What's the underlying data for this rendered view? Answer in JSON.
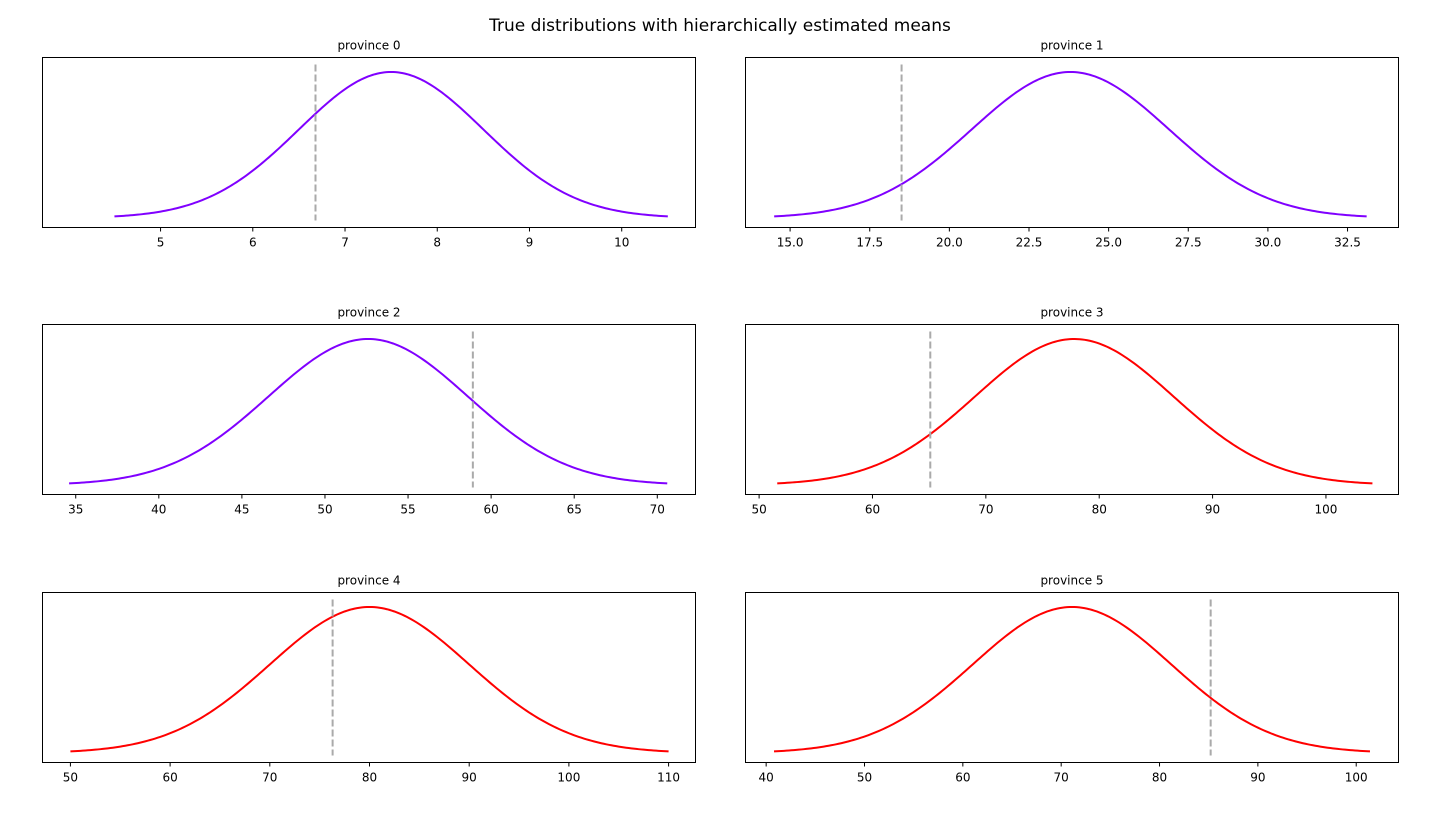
{
  "figure_title": "True distributions with hierarchically estimated means",
  "colors": {
    "purple": "#8000ff",
    "red": "#ff0000",
    "mean_line": "#aaaaaa"
  },
  "chart_data": [
    {
      "type": "line",
      "title": "province 0",
      "xlabel": "",
      "ylabel": "",
      "mean": 7.5,
      "sd": 1.0,
      "x_range": [
        4.5,
        10.5
      ],
      "xlim": [
        3.72,
        10.8
      ],
      "xticks": [
        5,
        6,
        7,
        8,
        9,
        10
      ],
      "xtick_labels": [
        "5",
        "6",
        "7",
        "8",
        "9",
        "10"
      ],
      "estimated_mean": 6.68,
      "color": "#8000ff",
      "yticks_visible": false
    },
    {
      "type": "line",
      "title": "province 1",
      "xlabel": "",
      "ylabel": "",
      "mean": 23.8,
      "sd": 3.1,
      "x_range": [
        14.5,
        33.1
      ],
      "xlim": [
        13.6,
        34.1
      ],
      "xticks": [
        15.0,
        17.5,
        20.0,
        22.5,
        25.0,
        27.5,
        30.0,
        32.5
      ],
      "xtick_labels": [
        "15.0",
        "17.5",
        "20.0",
        "22.5",
        "25.0",
        "27.5",
        "30.0",
        "32.5"
      ],
      "estimated_mean": 18.5,
      "color": "#8000ff",
      "yticks_visible": false
    },
    {
      "type": "line",
      "title": "province 2",
      "xlabel": "",
      "ylabel": "",
      "mean": 52.6,
      "sd": 6.0,
      "x_range": [
        34.6,
        70.6
      ],
      "xlim": [
        33.0,
        72.3
      ],
      "xticks": [
        35,
        40,
        45,
        50,
        55,
        60,
        65,
        70
      ],
      "xtick_labels": [
        "35",
        "40",
        "45",
        "50",
        "55",
        "60",
        "65",
        "70"
      ],
      "estimated_mean": 58.9,
      "color": "#8000ff",
      "yticks_visible": false
    },
    {
      "type": "line",
      "title": "province 3",
      "xlabel": "",
      "ylabel": "",
      "mean": 77.8,
      "sd": 8.75,
      "x_range": [
        51.6,
        104.1
      ],
      "xlim": [
        48.8,
        106.4
      ],
      "xticks": [
        50,
        60,
        70,
        80,
        90,
        100
      ],
      "xtick_labels": [
        "50",
        "60",
        "70",
        "80",
        "90",
        "100"
      ],
      "estimated_mean": 65.1,
      "color": "#ff0000",
      "yticks_visible": false
    },
    {
      "type": "line",
      "title": "province 4",
      "xlabel": "",
      "ylabel": "",
      "mean": 80.0,
      "sd": 10.0,
      "x_range": [
        50.0,
        110.0
      ],
      "xlim": [
        47.2,
        112.7
      ],
      "xticks": [
        50,
        60,
        70,
        80,
        90,
        100,
        110
      ],
      "xtick_labels": [
        "50",
        "60",
        "70",
        "80",
        "90",
        "100",
        "110"
      ],
      "estimated_mean": 76.3,
      "color": "#ff0000",
      "yticks_visible": false
    },
    {
      "type": "line",
      "title": "province 5",
      "xlabel": "",
      "ylabel": "",
      "mean": 71.1,
      "sd": 10.1,
      "x_range": [
        40.8,
        101.4
      ],
      "xlim": [
        37.9,
        104.3
      ],
      "xticks": [
        40,
        50,
        60,
        70,
        80,
        90,
        100
      ],
      "xtick_labels": [
        "40",
        "50",
        "60",
        "70",
        "80",
        "90",
        "100"
      ],
      "estimated_mean": 85.2,
      "color": "#ff0000",
      "yticks_visible": false
    }
  ]
}
